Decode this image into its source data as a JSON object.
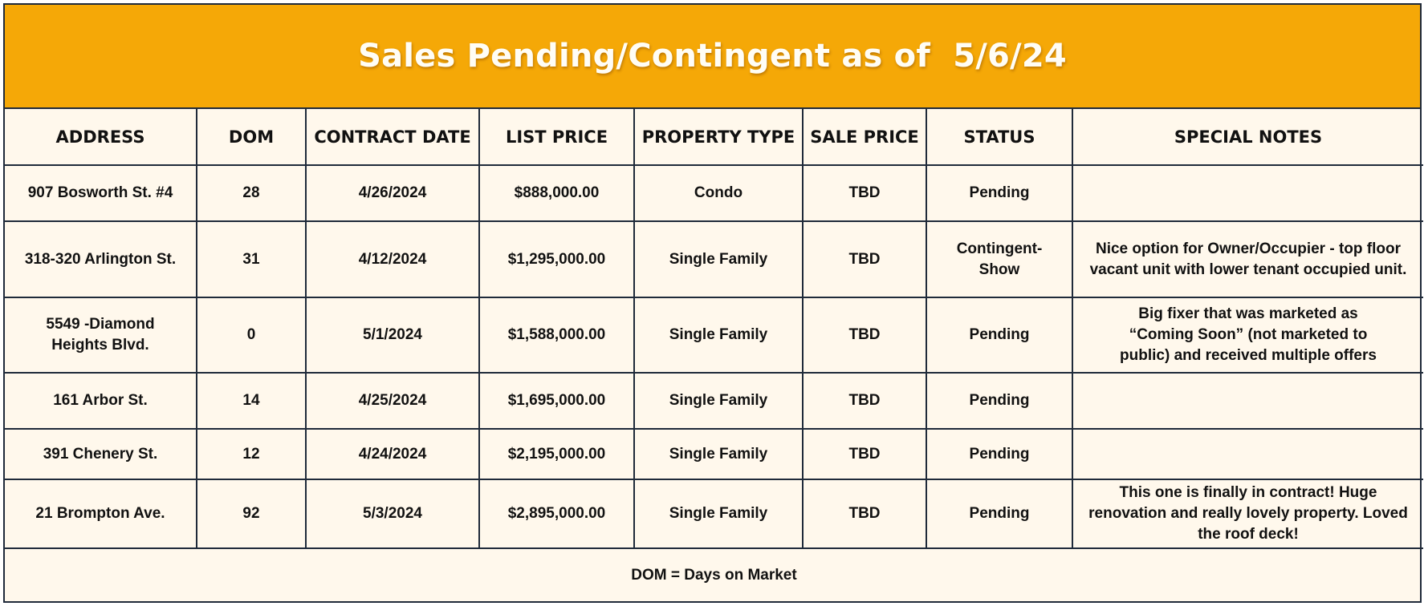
{
  "title": "Sales Pending/Contingent as of  5/6/24",
  "columns": [
    "ADDRESS",
    "DOM",
    "CONTRACT DATE",
    "LIST PRICE",
    "PROPERTY TYPE",
    "SALE PRICE",
    "STATUS",
    "SPECIAL NOTES"
  ],
  "rows": [
    {
      "address": "907 Bosworth St. #4",
      "dom": "28",
      "contract_date": "4/26/2024",
      "list_price": "$888,000.00",
      "property_type": "Condo",
      "sale_price": "TBD",
      "status": "Pending",
      "notes": ""
    },
    {
      "address": "318-320 Arlington St.",
      "dom": "31",
      "contract_date": "4/12/2024",
      "list_price": "$1,295,000.00",
      "property_type": "Single Family",
      "sale_price": "TBD",
      "status": "Contingent- Show",
      "notes": "Nice option for Owner/Occupier - top floor vacant unit with lower tenant occupied unit."
    },
    {
      "address": "5549 -Diamond Heights Blvd.",
      "dom": "0",
      "contract_date": "5/1/2024",
      "list_price": "$1,588,000.00",
      "property_type": "Single Family",
      "sale_price": "TBD",
      "status": "Pending",
      "notes": "Big fixer that was marketed as “Coming Soon” (not marketed to public) and received multiple offers"
    },
    {
      "address": "161 Arbor St.",
      "dom": "14",
      "contract_date": "4/25/2024",
      "list_price": "$1,695,000.00",
      "property_type": "Single Family",
      "sale_price": "TBD",
      "status": "Pending",
      "notes": ""
    },
    {
      "address": "391 Chenery St.",
      "dom": "12",
      "contract_date": "4/24/2024",
      "list_price": "$2,195,000.00",
      "property_type": "Single Family",
      "sale_price": "TBD",
      "status": "Pending",
      "notes": ""
    },
    {
      "address": "21 Brompton Ave.",
      "dom": "92",
      "contract_date": "5/3/2024",
      "list_price": "$2,895,000.00",
      "property_type": "Single Family",
      "sale_price": "TBD",
      "status": "Pending",
      "notes": "This one is finally in contract! Huge renovation and really lovely property. Loved the roof deck!"
    }
  ],
  "footer": "DOM = Days on Market",
  "colors": {
    "banner": "#f5a807",
    "background": "#fff8ec",
    "border": "#1f2a3a",
    "title_text": "#fffdf5"
  }
}
